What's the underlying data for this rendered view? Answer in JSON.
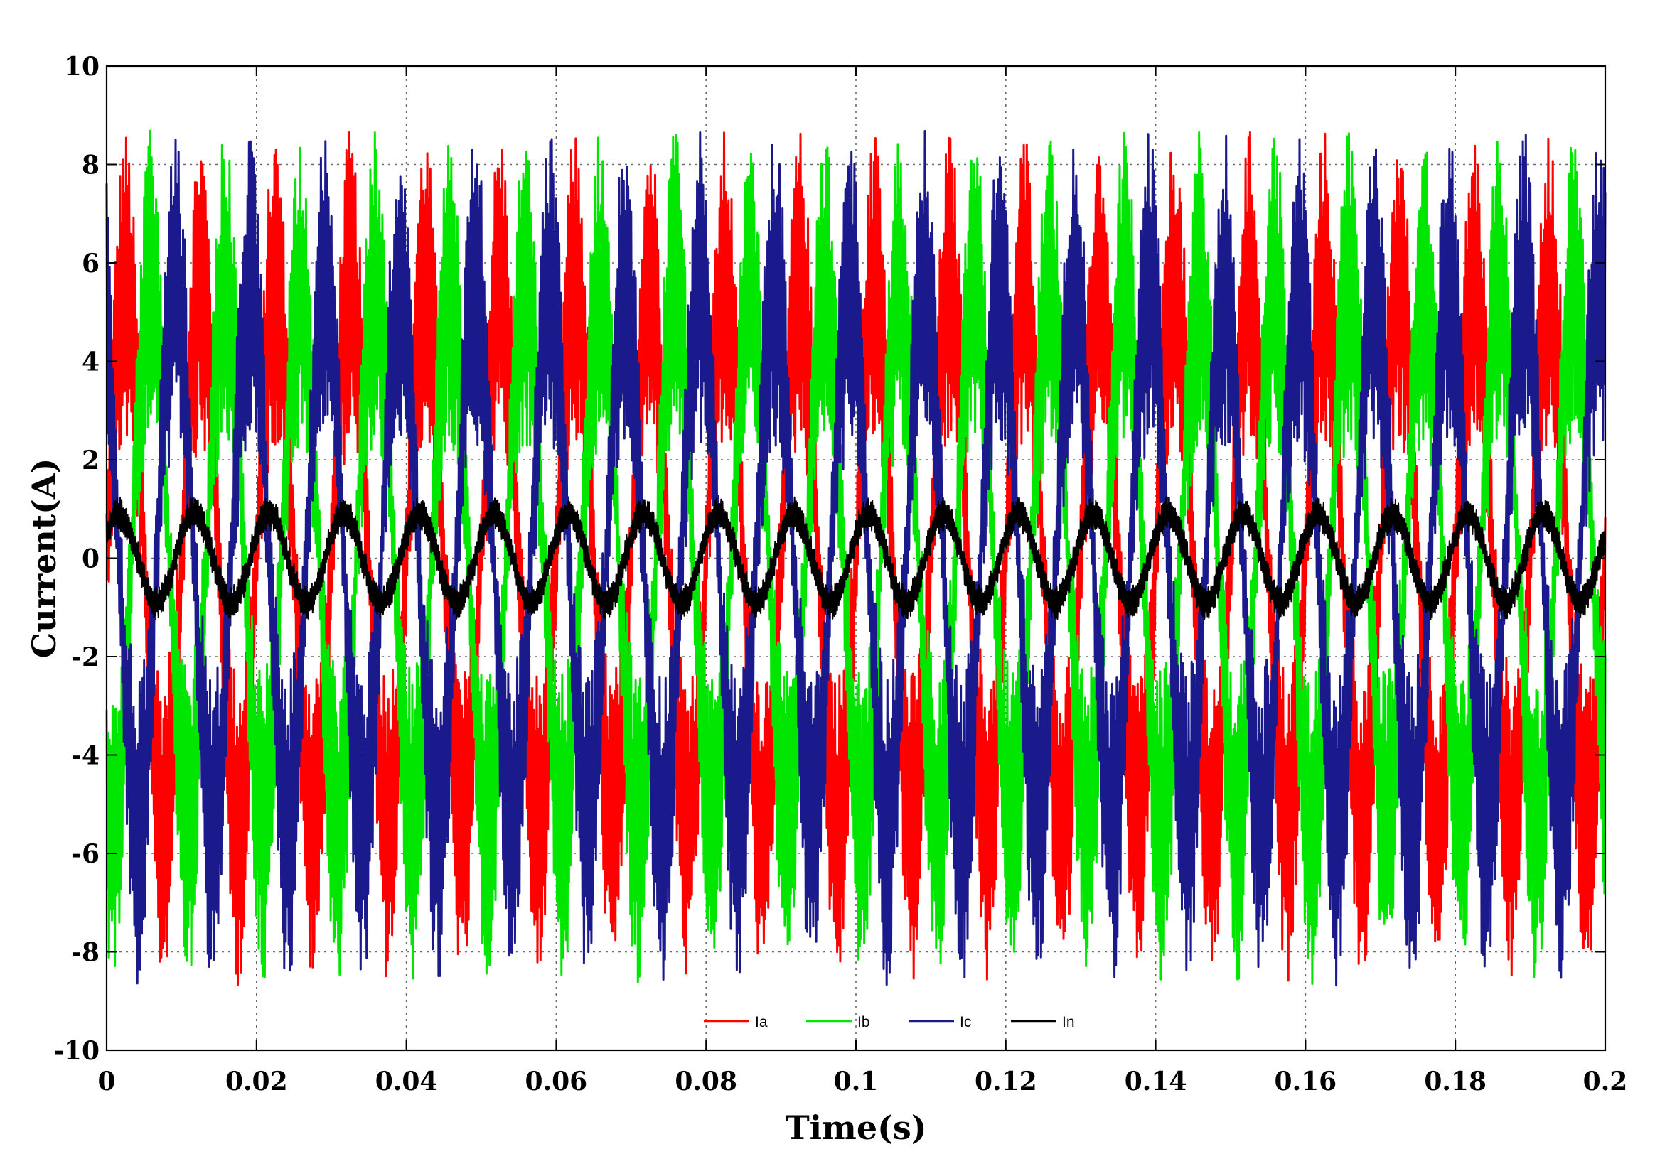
{
  "chart_data": {
    "type": "line",
    "title": "",
    "xlabel": "Time(s)",
    "ylabel": "Current(A)",
    "xlim": [
      0,
      0.2
    ],
    "ylim": [
      -10,
      10
    ],
    "grid": true,
    "legend_position": "bottom-center",
    "x_ticks": [
      "0",
      "0.02",
      "0.04",
      "0.06",
      "0.08",
      "0.1",
      "0.12",
      "0.14",
      "0.16",
      "0.18",
      "0.2"
    ],
    "y_ticks": [
      "10",
      "8",
      "6",
      "4",
      "2",
      "0",
      "-2",
      "-4",
      "-6",
      "-8",
      "-10"
    ],
    "fundamental_frequency_hz": 100,
    "series": [
      {
        "name": "Ia",
        "color": "#ff0000",
        "amplitude": 5.5,
        "phase_deg": 0,
        "ripple": 3.2,
        "line_width": 3
      },
      {
        "name": "Ib",
        "color": "#00e600",
        "amplitude": 5.5,
        "phase_deg": -120,
        "ripple": 3.2,
        "line_width": 3
      },
      {
        "name": "Ic",
        "color": "#1a1a8c",
        "amplitude": 5.5,
        "phase_deg": 120,
        "ripple": 3.2,
        "line_width": 3
      },
      {
        "name": "In",
        "color": "#000000",
        "amplitude": 0.9,
        "phase_deg": 30,
        "ripple": 0.35,
        "line_width": 2
      }
    ]
  }
}
